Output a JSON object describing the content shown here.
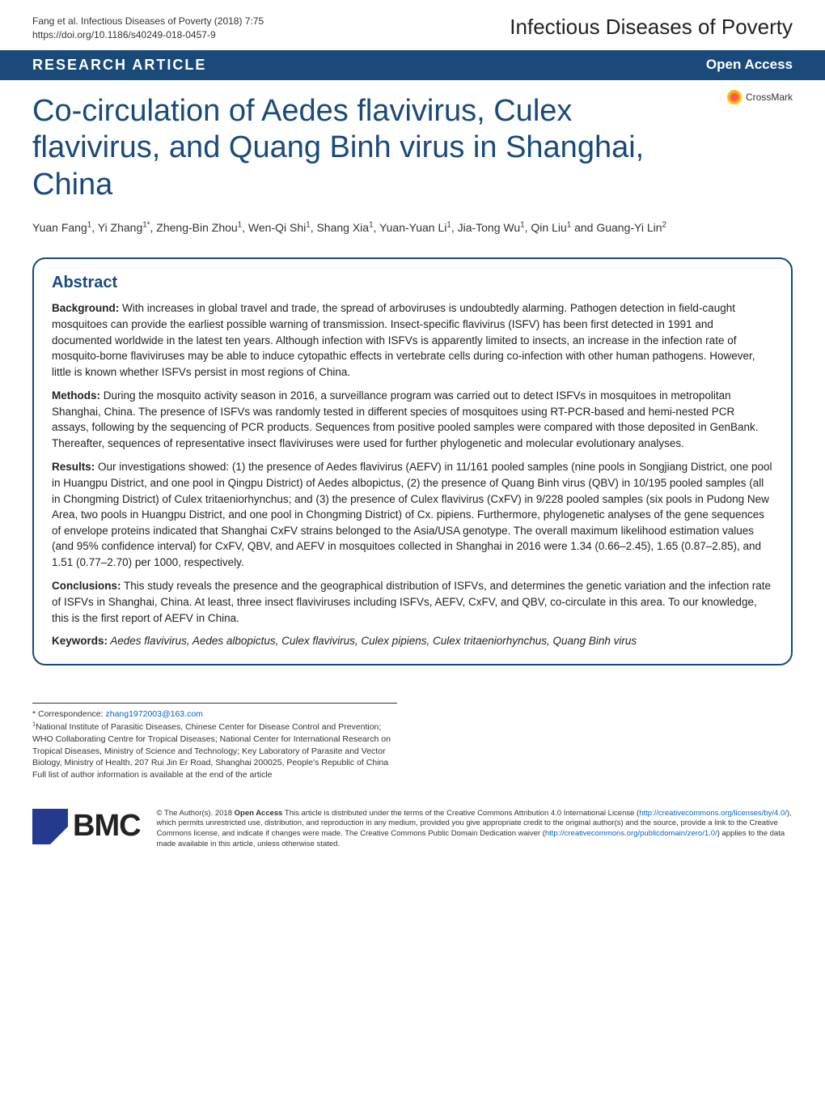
{
  "header": {
    "citation_line1": "Fang et al. Infectious Diseases of Poverty  (2018) 7:75",
    "citation_line2": "https://doi.org/10.1186/s40249-018-0457-9",
    "journal": "Infectious Diseases of Poverty"
  },
  "article_type_bar": {
    "type": "RESEARCH ARTICLE",
    "access": "Open Access"
  },
  "crossmark": {
    "label": "CrossMark"
  },
  "title": "Co-circulation of Aedes flavivirus, Culex flavivirus, and Quang Binh virus in Shanghai, China",
  "authors_html": "Yuan Fang<sup>1</sup>, Yi Zhang<sup>1*</sup>, Zheng-Bin Zhou<sup>1</sup>, Wen-Qi Shi<sup>1</sup>, Shang Xia<sup>1</sup>, Yuan-Yuan Li<sup>1</sup>, Jia-Tong Wu<sup>1</sup>, Qin Liu<sup>1</sup> and Guang-Yi Lin<sup>2</sup>",
  "abstract": {
    "heading": "Abstract",
    "background_label": "Background:",
    "background": " With increases in global travel and trade, the spread of arboviruses is undoubtedly alarming. Pathogen detection in field-caught mosquitoes can provide the earliest possible warning of transmission. Insect-specific flavivirus (ISFV) has been first detected in 1991 and documented worldwide in the latest ten years. Although infection with ISFVs is apparently limited to insects, an increase in the infection rate of mosquito-borne flaviviruses may be able to induce cytopathic effects in vertebrate cells during co-infection with other human pathogens. However, little is known whether ISFVs persist in most regions of China.",
    "methods_label": "Methods:",
    "methods": " During the mosquito activity season in 2016, a surveillance program was carried out to detect ISFVs in mosquitoes in metropolitan Shanghai, China. The presence of ISFVs was randomly tested in different species of mosquitoes using RT-PCR-based and hemi-nested PCR assays, following by the sequencing of PCR products. Sequences from positive pooled samples were compared with those deposited in GenBank. Thereafter, sequences of representative insect flaviviruses were used for further phylogenetic and molecular evolutionary analyses.",
    "results_label": "Results:",
    "results": " Our investigations showed: (1) the presence of Aedes flavivirus (AEFV) in 11/161 pooled samples (nine pools in Songjiang District, one pool in Huangpu District, and one pool in Qingpu District) of Aedes albopictus, (2) the presence of Quang Binh virus (QBV) in 10/195 pooled samples (all in Chongming District) of Culex tritaeniorhynchus; and (3) the presence of Culex flavivirus (CxFV) in 9/228 pooled samples (six pools in Pudong New Area, two pools in Huangpu District, and one pool in Chongming District) of Cx. pipiens. Furthermore, phylogenetic analyses of the gene sequences of envelope proteins indicated that Shanghai CxFV strains belonged to the Asia/USA genotype. The overall maximum likelihood estimation values (and 95% confidence interval) for CxFV, QBV, and AEFV in mosquitoes collected in Shanghai in 2016 were 1.34 (0.66–2.45), 1.65 (0.87–2.85), and 1.51 (0.77–2.70) per 1000, respectively.",
    "conclusions_label": "Conclusions:",
    "conclusions": " This study reveals the presence and the geographical distribution of ISFVs, and determines the genetic variation and the infection rate of ISFVs in Shanghai, China. At least, three insect flaviviruses including ISFVs, AEFV, CxFV, and QBV, co-circulate in this area. To our knowledge, this is the first report of AEFV in China.",
    "keywords_label": "Keywords:",
    "keywords": " Aedes flavivirus, Aedes albopictus, Culex flavivirus, Culex pipiens, Culex tritaeniorhynchus, Quang Binh virus"
  },
  "correspondence": {
    "star": "* Correspondence: ",
    "email": "zhang1972003@163.com",
    "affil": "National Institute of Parasitic Diseases, Chinese Center for Disease Control and Prevention; WHO Collaborating Centre for Tropical Diseases; National Center for International Research on Tropical Diseases, Ministry of Science and Technology; Key Laboratory of Parasite and Vector Biology, Ministry of Health, 207 Rui Jin Er Road, Shanghai 200025, People's Republic of China",
    "full_list": "Full list of author information is available at the end of the article"
  },
  "bmc": {
    "text": "BMC"
  },
  "license": {
    "text_before": "© The Author(s). 2018 ",
    "open_access_bold": "Open Access",
    "text_mid": " This article is distributed under the terms of the Creative Commons Attribution 4.0 International License (",
    "link1": "http://creativecommons.org/licenses/by/4.0/",
    "text_mid2": "), which permits unrestricted use, distribution, and reproduction in any medium, provided you give appropriate credit to the original author(s) and the source, provide a link to the Creative Commons license, and indicate if changes were made. The Creative Commons Public Domain Dedication waiver (",
    "link2": "http://creativecommons.org/publicdomain/zero/1.0/",
    "text_end": ") applies to the data made available in this article, unless otherwise stated."
  },
  "colors": {
    "primary": "#1a4a7a",
    "bmc_blue": "#243a8e",
    "link": "#0066cc"
  }
}
